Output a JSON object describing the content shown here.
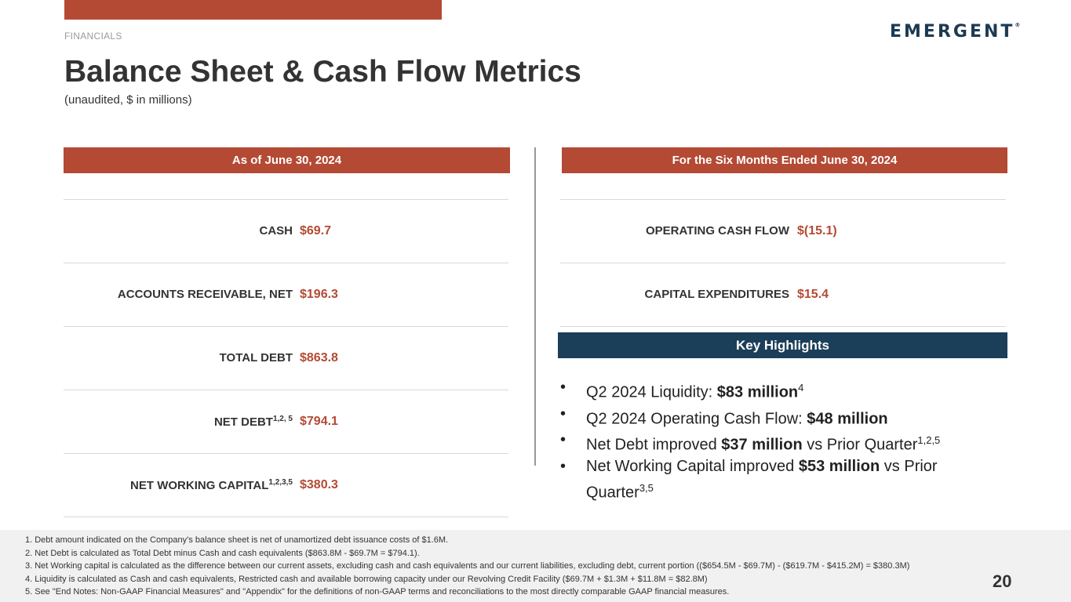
{
  "header": {
    "section_label": "FINANCIALS",
    "logo_text": "EMERGENT",
    "logo_mark": "®",
    "title": "Balance Sheet & Cash Flow Metrics",
    "subtitle": "(unaudited, $ in millions)"
  },
  "left_column": {
    "header": "As of June 30, 2024",
    "metrics": [
      {
        "label": "CASH",
        "sup": "",
        "value": "$69.7"
      },
      {
        "label": "ACCOUNTS RECEIVABLE, NET",
        "sup": "",
        "value": "$196.3"
      },
      {
        "label": "TOTAL DEBT",
        "sup": "",
        "value": "$863.8"
      },
      {
        "label": "NET DEBT",
        "sup": "1,2, 5",
        "value": "$794.1"
      },
      {
        "label": "NET WORKING CAPITAL",
        "sup": "1,2,3,5",
        "value": "$380.3"
      }
    ]
  },
  "right_column": {
    "header": "For the Six Months Ended June 30, 2024",
    "metrics": [
      {
        "label": "OPERATING CASH FLOW",
        "value": "$(15.1)"
      },
      {
        "label": "CAPITAL EXPENDITURES",
        "value": "$15.4"
      }
    ]
  },
  "key_highlights": {
    "header": "Key Highlights",
    "bullet": "•",
    "items": [
      {
        "pre": "Q2 2024 Liquidity: ",
        "bold": "$83 million",
        "post": "",
        "sup": "4"
      },
      {
        "pre": "Q2 2024 Operating Cash Flow: ",
        "bold": "$48 million",
        "post": "",
        "sup": ""
      },
      {
        "pre": "Net Debt improved ",
        "bold": "$37 million",
        "post": " vs Prior Quarter",
        "sup": "1,2,5"
      },
      {
        "pre": "Net Working Capital improved ",
        "bold": "$53 million",
        "post": " vs Prior Quarter",
        "sup": "3,5"
      }
    ]
  },
  "footnotes": [
    "1. Debt amount indicated on the Company’s balance sheet is net of unamortized debt issuance costs of $1.6M.",
    "2. Net Debt is calculated as Total Debt minus Cash and cash equivalents ($863.8M - $69.7M = $794.1).",
    "3. Net Working capital is calculated as the difference between our current assets, excluding cash and cash equivalents and our current liabilities, excluding debt, current portion (($654.5M - $69.7M) - ($619.7M - $415.2M) =  $380.3M)",
    "4. Liquidity is calculated as Cash and cash equivalents, Restricted cash and available borrowing capacity under our Revolving Credit Facility ($69.7M + $1.3M + $11.8M = $82.8M)",
    "5. See \"End Notes: Non-GAAP Financial Measures\" and \"Appendix\" for the definitions of non-GAAP terms and reconciliations to the most directly comparable GAAP financial measures."
  ],
  "page_number": "20",
  "colors": {
    "accent": "#b44a34",
    "navy": "#1b3e59"
  }
}
